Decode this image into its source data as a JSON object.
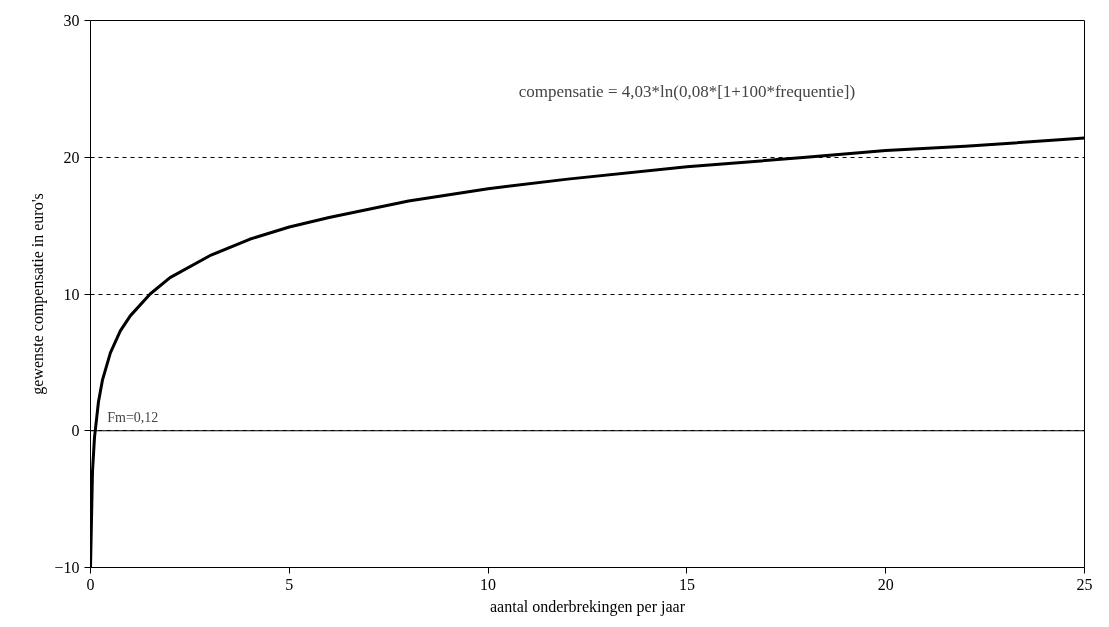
{
  "chart_data": {
    "type": "line",
    "xlabel": "aantal onderbrekingen per jaar",
    "ylabel": "gewenste compensatie in euro's",
    "x": [
      0,
      0.05,
      0.1,
      0.2,
      0.3,
      0.5,
      0.75,
      1,
      1.5,
      2,
      3,
      4,
      5,
      6,
      8,
      10,
      12,
      15,
      18,
      20,
      22,
      25
    ],
    "series": [
      {
        "color": "#000000",
        "values": [
          -10.0,
          -3.0,
          -0.5,
          2.1,
          3.7,
          5.7,
          7.3,
          8.4,
          10.0,
          11.2,
          12.8,
          14.0,
          14.9,
          15.6,
          16.8,
          17.7,
          18.4,
          19.3,
          20.0,
          20.5,
          20.8,
          21.4
        ]
      }
    ],
    "xlim": [
      0,
      25
    ],
    "xticks": [
      0,
      5,
      10,
      15,
      20,
      25
    ],
    "ylim": [
      -10,
      30
    ],
    "yticks": [
      -10,
      0,
      10,
      20,
      30
    ],
    "grid": "y",
    "line_style": "solid",
    "ref_lines": [
      {
        "axis": "y",
        "value": 0,
        "color": "#000000",
        "line_style": "solid"
      }
    ],
    "annotations": [
      "compensatie = 4,03*ln(0,08*[1+100*frequentie])",
      {
        "text": "Fm=0,12",
        "x": 0.12,
        "y": 0
      }
    ]
  }
}
